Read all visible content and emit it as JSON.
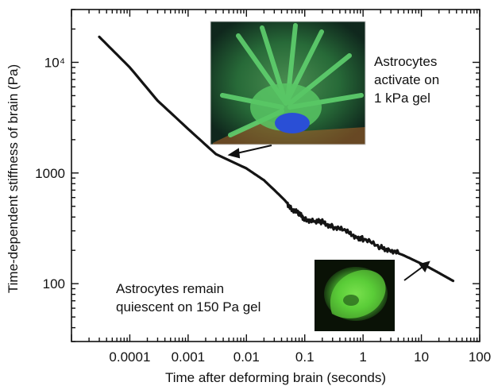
{
  "chart_data": {
    "type": "line",
    "xlabel": "Time after deforming brain (seconds)",
    "ylabel": "Time-dependent stiffness of brain (Pa)",
    "xscale": "log",
    "yscale": "log",
    "xlim": [
      1e-05,
      100
    ],
    "ylim": [
      30,
      30000
    ],
    "x_tick_labels": [
      "0.0001",
      "0.001",
      "0.01",
      "0.1",
      "1",
      "10",
      "100"
    ],
    "y_tick_labels": [
      "100",
      "1000",
      "10⁴"
    ],
    "series": [
      {
        "x": [
          3e-05,
          0.0001,
          0.0003,
          0.001,
          0.003,
          0.01,
          0.02,
          0.035,
          0.045,
          0.06,
          0.08,
          0.1,
          0.15,
          0.2,
          0.3,
          0.5,
          0.8,
          1,
          2,
          3,
          5,
          8,
          12,
          20,
          35
        ],
        "y": [
          17000,
          9000,
          4500,
          2500,
          1480,
          1100,
          860,
          650,
          570,
          480,
          420,
          390,
          360,
          360,
          330,
          295,
          265,
          250,
          215,
          200,
          180,
          160,
          145,
          125,
          106
        ]
      }
    ],
    "annotations": [
      {
        "lines": [
          "Astrocytes",
          "activate on",
          "1 kPa gel"
        ],
        "arrow_to": {
          "x": 0.0035,
          "y": 1480
        }
      },
      {
        "lines": [
          "Astrocytes remain",
          "quiescent on 150 Pa gel"
        ],
        "arrow_to": {
          "x": 17,
          "y": 140
        }
      }
    ],
    "insets": [
      {
        "subject": "astrocyte-activated-micrograph"
      },
      {
        "subject": "astrocyte-quiescent-micrograph"
      }
    ],
    "grid": false,
    "legend": "none"
  }
}
